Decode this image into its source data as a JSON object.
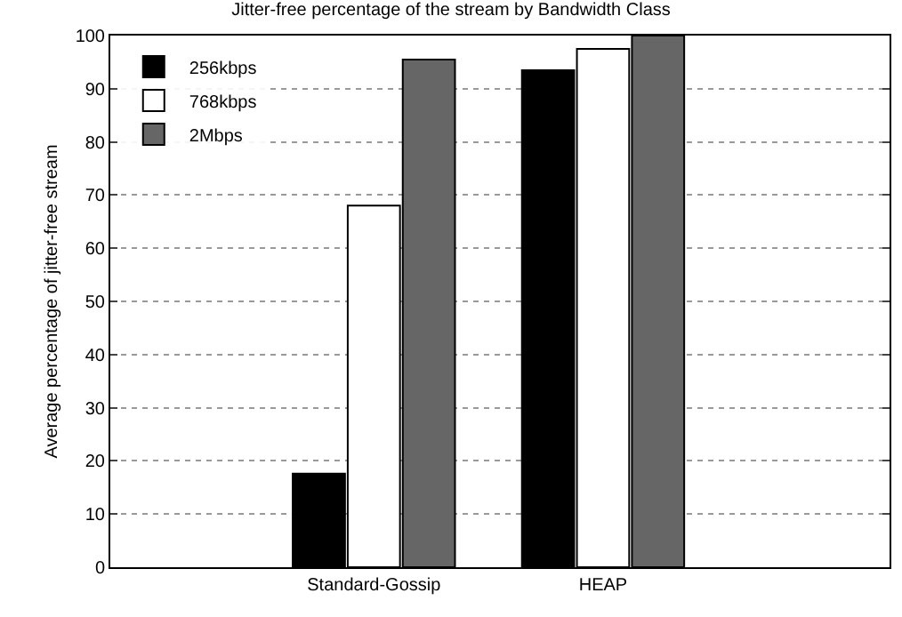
{
  "chart_data": {
    "type": "bar",
    "title": "Jitter-free percentage of the stream by Bandwidth Class",
    "ylabel": "Average percentage of jitter-free stream",
    "categories": [
      "Standard-Gossip",
      "HEAP"
    ],
    "series": [
      {
        "name": "256kbps",
        "color": "#000000",
        "values": [
          17.6,
          93.5
        ]
      },
      {
        "name": "768kbps",
        "color": "#ffffff",
        "values": [
          68,
          97.5
        ]
      },
      {
        "name": "2Mbps",
        "color": "#666666",
        "values": [
          95.5,
          100
        ]
      }
    ],
    "ylim": [
      0,
      100
    ],
    "yticks": [
      0,
      10,
      20,
      30,
      40,
      50,
      60,
      70,
      80,
      90,
      100
    ],
    "grid": "y",
    "legend": "top left"
  }
}
